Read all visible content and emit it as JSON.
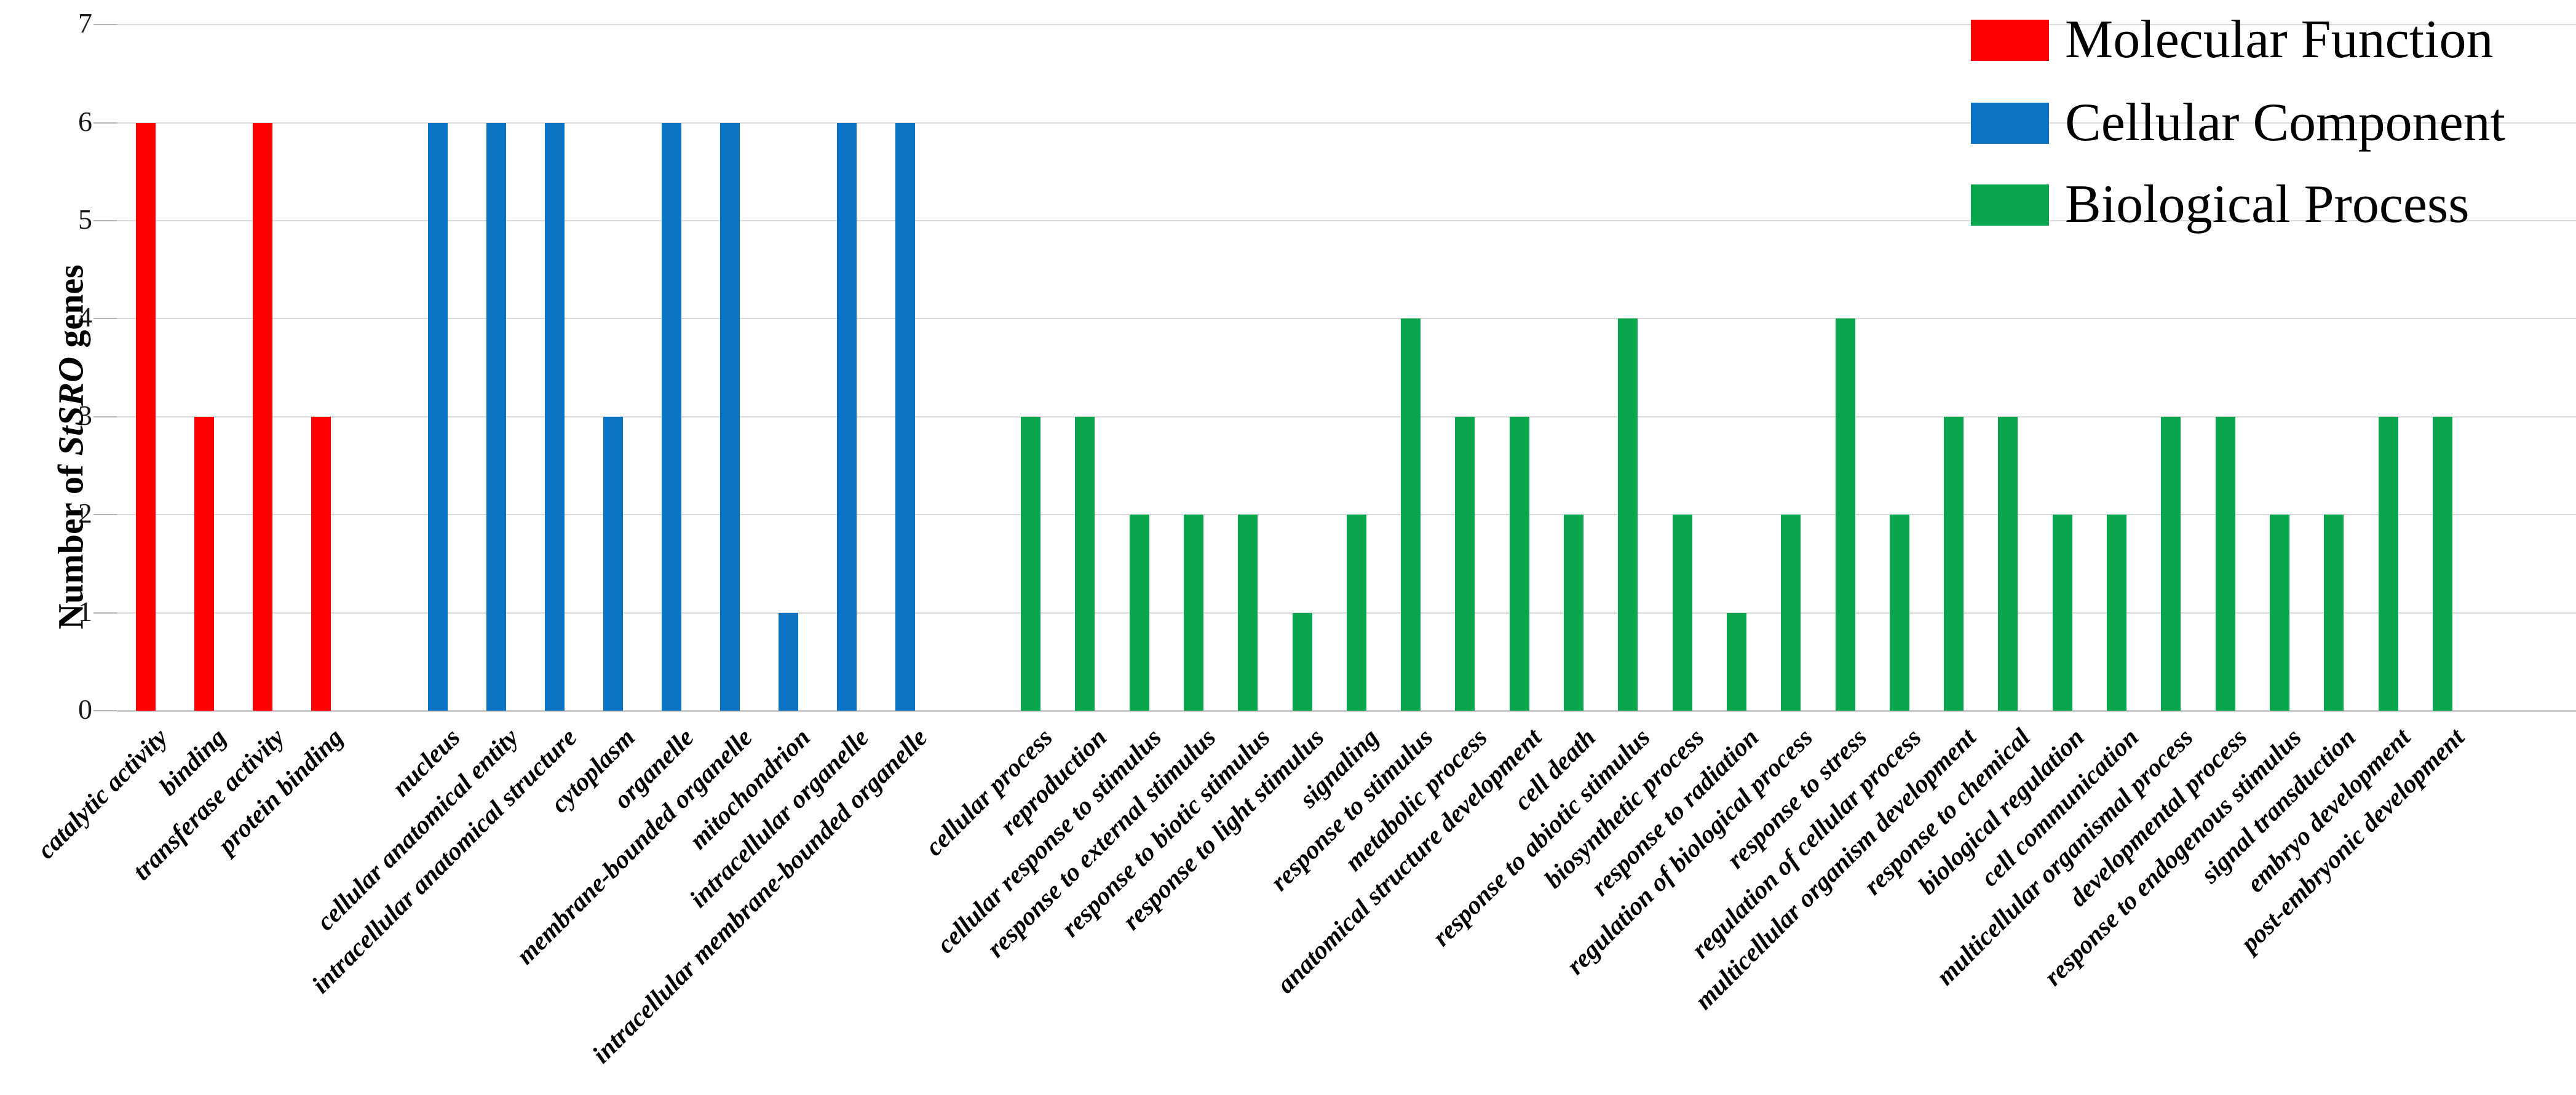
{
  "chart_data": {
    "type": "bar",
    "title": "",
    "ylabel_parts": {
      "prefix": "Number of ",
      "italic": "StSRO",
      "suffix": " genes"
    },
    "xlabel": "",
    "ylim": [
      0,
      7
    ],
    "yticks": [
      0,
      1,
      2,
      3,
      4,
      5,
      6,
      7
    ],
    "grid": true,
    "legend_position": "top-right",
    "groups": [
      {
        "name": "Molecular Function",
        "color": "#fe0000",
        "categories": [
          "catalytic activity",
          "binding",
          "transferase activity",
          "protein binding"
        ],
        "values": [
          6,
          3,
          6,
          3
        ]
      },
      {
        "name": "Cellular Component",
        "color": "#0b74c5",
        "categories": [
          "nucleus",
          "cellular anatomical entity",
          "intracellular anatomical structure",
          "cytoplasm",
          "organelle",
          "membrane-bounded organelle",
          "mitochondrion",
          "intracellular organelle",
          "intracellular membrane-bounded organelle"
        ],
        "values": [
          6,
          6,
          6,
          3,
          6,
          6,
          1,
          6,
          6
        ]
      },
      {
        "name": "Biological Process",
        "color": "#09a64d",
        "categories": [
          "cellular process",
          "reproduction",
          "cellular response to stimulus",
          "response to external stimulus",
          "response to biotic stimulus",
          "response to light stimulus",
          "signaling",
          "response to stimulus",
          "metabolic process",
          "anatomical structure development",
          "cell death",
          "response to abiotic stimulus",
          "biosynthetic process",
          "response to radiation",
          "regulation of biological process",
          "response to stress",
          "regulation of cellular process",
          "multicellular organism development",
          "response to chemical",
          "biological regulation",
          "cell communication",
          "multicellular organismal process",
          "developmental process",
          "response to endogenous stimulus",
          "signal transduction",
          "embryo development",
          "post-embryonic development"
        ],
        "values": [
          3,
          3,
          2,
          2,
          2,
          1,
          2,
          4,
          3,
          3,
          2,
          4,
          2,
          1,
          2,
          4,
          2,
          3,
          3,
          2,
          2,
          3,
          3,
          2,
          2,
          3,
          3
        ]
      }
    ]
  }
}
